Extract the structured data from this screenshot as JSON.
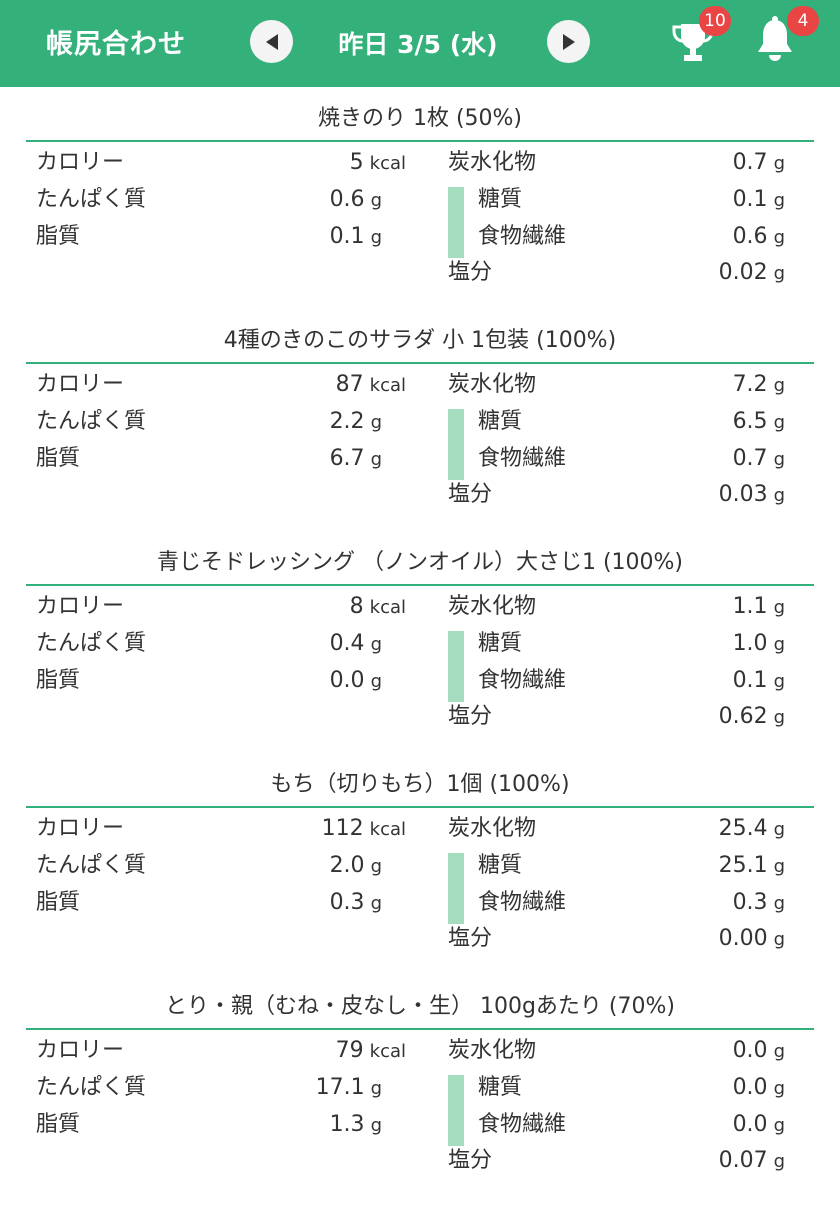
{
  "header": {
    "title": "帳尻合わせ",
    "date": "昨日 3/5 (水)",
    "trophy_count": "10",
    "bell_count": "4",
    "prev_icon": "triangle-left-icon",
    "next_icon": "triangle-right-icon",
    "accent_color": "#34b07b",
    "badge_color": "#e94545"
  },
  "labels": {
    "calorie": "カロリー",
    "protein": "たんぱく質",
    "fat": "脂質",
    "carb": "炭水化物",
    "sugar": "糖質",
    "fiber": "食物繊維",
    "salt": "塩分",
    "kcal": "kcal",
    "g": "g"
  },
  "foods": [
    {
      "name": "焼きのり 1枚 (50%)",
      "calorie": "5",
      "protein": "0.6",
      "fat": "0.1",
      "carb": "0.7",
      "sugar": "0.1",
      "fiber": "0.6",
      "salt": "0.02"
    },
    {
      "name": "4種のきのこのサラダ 小 1包装 (100%)",
      "calorie": "87",
      "protein": "2.2",
      "fat": "6.7",
      "carb": "7.2",
      "sugar": "6.5",
      "fiber": "0.7",
      "salt": "0.03"
    },
    {
      "name": "青じそドレッシング （ノンオイル）大さじ1 (100%)",
      "calorie": "8",
      "protein": "0.4",
      "fat": "0.0",
      "carb": "1.1",
      "sugar": "1.0",
      "fiber": "0.1",
      "salt": "0.62"
    },
    {
      "name": "もち（切りもち）1個 (100%)",
      "calorie": "112",
      "protein": "2.0",
      "fat": "0.3",
      "carb": "25.4",
      "sugar": "25.1",
      "fiber": "0.3",
      "salt": "0.00"
    },
    {
      "name": "とり・親（むね・皮なし・生） 100gあたり (70%)",
      "calorie": "79",
      "protein": "17.1",
      "fat": "1.3",
      "carb": "0.0",
      "sugar": "0.0",
      "fiber": "0.0",
      "salt": "0.07"
    }
  ]
}
